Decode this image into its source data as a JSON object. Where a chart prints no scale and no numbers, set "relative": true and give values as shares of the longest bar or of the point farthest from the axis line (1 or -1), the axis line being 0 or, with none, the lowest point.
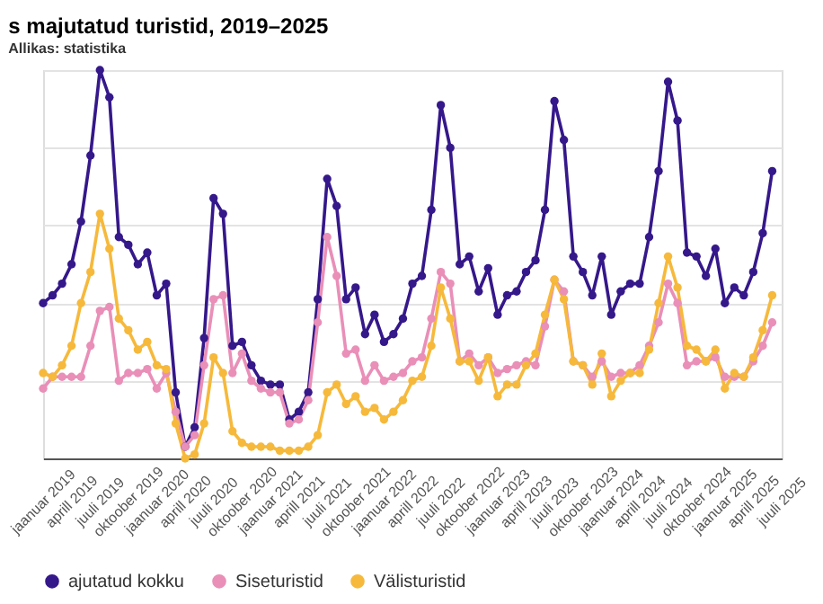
{
  "chart_data": {
    "type": "line",
    "relative": true,
    "title": "s majutatud turistid, 2019–2025",
    "annotations": [
      "Allikas: statistika"
    ],
    "categories": [
      "jaanuar 2019",
      null,
      null,
      "aprill 2019",
      null,
      null,
      "juuli 2019",
      null,
      null,
      "oktoober 2019",
      null,
      null,
      "jaanuar 2020",
      null,
      null,
      "aprill 2020",
      null,
      null,
      "juuli 2020",
      null,
      null,
      "oktoober 2020",
      null,
      null,
      "jaanuar 2021",
      null,
      null,
      "aprill 2021",
      null,
      null,
      "juuli 2021",
      null,
      null,
      "oktoober 2021",
      null,
      null,
      "jaanuar 2022",
      null,
      null,
      "aprill 2022",
      null,
      null,
      "juuli 2022",
      null,
      null,
      "oktoober 2022",
      null,
      null,
      "jaanuar 2023",
      null,
      null,
      "aprill 2023",
      null,
      null,
      "juuli 2023",
      null,
      null,
      "oktoober 2023",
      null,
      null,
      "jaanuar 2024",
      null,
      null,
      "aprill 2024",
      null,
      null,
      "juuli 2024",
      null,
      null,
      "oktoober 2024",
      null,
      null,
      "jaanuar 2025",
      null,
      null,
      "aprill 2025",
      null,
      null,
      "juuli 2025"
    ],
    "series": [
      {
        "name": "ajutatud kokku",
        "color": "#35188a",
        "values": [
          0.4,
          0.42,
          0.45,
          0.5,
          0.61,
          0.78,
          1,
          0.93,
          0.57,
          0.55,
          0.5,
          0.53,
          0.42,
          0.45,
          0.17,
          0.03,
          0.08,
          0.31,
          0.67,
          0.63,
          0.29,
          0.3,
          0.24,
          0.2,
          0.19,
          0.19,
          0.1,
          0.12,
          0.17,
          0.41,
          0.72,
          0.65,
          0.41,
          0.44,
          0.32,
          0.37,
          0.3,
          0.32,
          0.36,
          0.45,
          0.47,
          0.64,
          0.91,
          0.8,
          0.5,
          0.52,
          0.43,
          0.49,
          0.37,
          0.42,
          0.43,
          0.48,
          0.51,
          0.64,
          0.92,
          0.82,
          0.52,
          0.48,
          0.42,
          0.52,
          0.37,
          0.43,
          0.45,
          0.45,
          0.57,
          0.74,
          0.97,
          0.87,
          0.53,
          0.52,
          0.47,
          0.54,
          0.4,
          0.44,
          0.42,
          0.48,
          0.58,
          0.74,
          null
        ]
      },
      {
        "name": "Siseturistid",
        "color": "#e98fb8",
        "values": [
          0.18,
          0.21,
          0.21,
          0.21,
          0.21,
          0.29,
          0.38,
          0.39,
          0.2,
          0.22,
          0.22,
          0.23,
          0.18,
          0.22,
          0.12,
          0.03,
          0.06,
          0.24,
          0.41,
          0.42,
          0.22,
          0.27,
          0.2,
          0.18,
          0.17,
          0.17,
          0.09,
          0.1,
          0.15,
          0.35,
          0.57,
          0.47,
          0.27,
          0.28,
          0.2,
          0.24,
          0.2,
          0.21,
          0.22,
          0.25,
          0.26,
          0.36,
          0.48,
          0.45,
          0.25,
          0.27,
          0.24,
          0.26,
          0.22,
          0.23,
          0.24,
          0.25,
          0.24,
          0.34,
          0.46,
          0.43,
          0.25,
          0.24,
          0.21,
          0.25,
          0.21,
          0.22,
          0.22,
          0.24,
          0.29,
          0.35,
          0.45,
          0.4,
          0.24,
          0.25,
          0.25,
          0.26,
          0.21,
          0.21,
          0.21,
          0.25,
          0.29,
          0.35,
          null
        ]
      },
      {
        "name": "Välisturistid",
        "color": "#f6b93b",
        "values": [
          0.22,
          0.21,
          0.24,
          0.29,
          0.4,
          0.48,
          0.63,
          0.54,
          0.36,
          0.33,
          0.28,
          0.3,
          0.24,
          0.23,
          0.09,
          0,
          0.01,
          0.09,
          0.26,
          0.22,
          0.07,
          0.04,
          0.03,
          0.03,
          0.03,
          0.02,
          0.02,
          0.02,
          0.03,
          0.06,
          0.17,
          0.19,
          0.14,
          0.16,
          0.12,
          0.13,
          0.1,
          0.12,
          0.15,
          0.2,
          0.21,
          0.29,
          0.44,
          0.36,
          0.25,
          0.25,
          0.2,
          0.26,
          0.16,
          0.19,
          0.19,
          0.24,
          0.27,
          0.37,
          0.46,
          0.41,
          0.25,
          0.24,
          0.19,
          0.27,
          0.16,
          0.2,
          0.22,
          0.22,
          0.28,
          0.4,
          0.52,
          0.44,
          0.29,
          0.28,
          0.25,
          0.28,
          0.18,
          0.22,
          0.21,
          0.26,
          0.33,
          0.42,
          null
        ]
      }
    ],
    "grid": "y",
    "legend": "bottom left",
    "marker": "circle",
    "line_style": "solid",
    "tick_labels": "x"
  }
}
